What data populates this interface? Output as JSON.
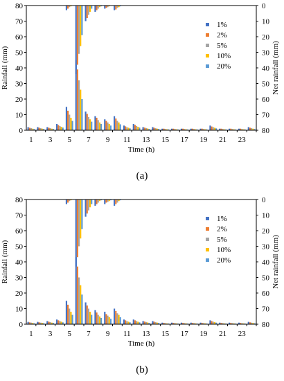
{
  "chart_data": [
    {
      "panel_label": "(a)",
      "type": "bar",
      "xlabel": "Time (h)",
      "ylabel": "Rainfall (mm)",
      "ylabel_right": "Net rainfall (mm)",
      "ylim": [
        0,
        80
      ],
      "ylim_right": [
        0,
        80
      ],
      "right_axis_inverted": true,
      "yticks": [
        0,
        10,
        20,
        30,
        40,
        50,
        60,
        70,
        80
      ],
      "yticks_right": [
        0,
        10,
        20,
        30,
        40,
        50,
        60,
        70,
        80
      ],
      "xticks": [
        1,
        3,
        5,
        7,
        9,
        11,
        13,
        15,
        17,
        19,
        21,
        23
      ],
      "hours": [
        1,
        2,
        3,
        4,
        5,
        6,
        7,
        8,
        9,
        10,
        11,
        12,
        13,
        14,
        15,
        16,
        17,
        18,
        19,
        20,
        21,
        22,
        23,
        24
      ],
      "legend_position": "right",
      "series": [
        {
          "name": "1%",
          "color": "#4472C4",
          "rainfall": [
            2,
            2,
            2,
            4,
            15,
            45,
            12,
            9,
            7,
            9,
            3,
            4,
            2,
            2,
            1,
            1,
            1,
            1,
            1,
            3,
            1,
            1,
            1,
            2
          ],
          "net_rainfall": [
            0,
            0,
            0,
            0,
            3,
            44,
            10,
            4,
            2,
            3,
            0,
            0,
            0,
            0,
            0,
            0,
            0,
            0,
            0,
            0,
            0,
            0,
            0,
            0
          ]
        },
        {
          "name": "2%",
          "color": "#ED7D31",
          "rainfall": [
            1.6,
            1.6,
            1.6,
            3.3,
            12.5,
            39,
            10.5,
            8,
            6,
            7.5,
            2.5,
            3.4,
            1.7,
            1.6,
            1,
            1,
            1,
            1,
            1,
            2.4,
            1,
            1,
            1,
            1.6
          ],
          "net_rainfall": [
            0,
            0,
            0,
            0,
            2,
            38,
            8,
            3,
            1.5,
            2.5,
            0,
            0,
            0,
            0,
            0,
            0,
            0,
            0,
            0,
            0,
            0,
            0,
            0,
            0
          ]
        },
        {
          "name": "5%",
          "color": "#A5A5A5",
          "rainfall": [
            1.3,
            1.3,
            1.3,
            2.7,
            10,
            32,
            8.5,
            6.5,
            5,
            6,
            2,
            2.7,
            1.4,
            1.3,
            0.8,
            0.8,
            0.8,
            0.8,
            0.8,
            2,
            0.8,
            0.8,
            0.8,
            1.3
          ],
          "net_rainfall": [
            0,
            0,
            0,
            0,
            1,
            31,
            6,
            2,
            1,
            1.5,
            0,
            0,
            0,
            0,
            0,
            0,
            0,
            0,
            0,
            0,
            0,
            0,
            0,
            0
          ]
        },
        {
          "name": "10%",
          "color": "#FFC000",
          "rainfall": [
            1,
            1,
            1,
            2.2,
            8,
            26,
            7,
            5,
            4,
            5,
            1.6,
            2.2,
            1.1,
            1,
            0.6,
            0.6,
            0.6,
            0.6,
            0.6,
            1.6,
            0.6,
            0.6,
            0.6,
            1
          ],
          "net_rainfall": [
            0,
            0,
            0,
            0,
            0.5,
            26,
            4,
            1,
            0.5,
            1,
            0,
            0,
            0,
            0,
            0,
            0,
            0,
            0,
            0,
            0,
            0,
            0,
            0,
            0
          ]
        },
        {
          "name": "20%",
          "color": "#5B9BD5",
          "rainfall": [
            0.8,
            0.8,
            0.8,
            1.7,
            6,
            20,
            5.5,
            4,
            3,
            3.8,
            1.2,
            1.7,
            0.8,
            0.8,
            0.5,
            0.5,
            0.5,
            0.5,
            0.5,
            1.2,
            0.5,
            0.5,
            0.5,
            0.8
          ],
          "net_rainfall": [
            0,
            0,
            0,
            0,
            0,
            19,
            2,
            0.5,
            0,
            0.5,
            0,
            0,
            0,
            0,
            0,
            0,
            0,
            0,
            0,
            0,
            0,
            0,
            0,
            0
          ]
        }
      ]
    },
    {
      "panel_label": "(b)",
      "type": "bar",
      "xlabel": "Time (h)",
      "ylabel": "Rainfall (mm)",
      "ylabel_right": "Net rainfall (mm)",
      "ylim": [
        0,
        80
      ],
      "ylim_right": [
        0,
        80
      ],
      "right_axis_inverted": true,
      "yticks": [
        0,
        10,
        20,
        30,
        40,
        50,
        60,
        70,
        80
      ],
      "yticks_right": [
        0,
        10,
        20,
        30,
        40,
        50,
        60,
        70,
        80
      ],
      "xticks": [
        1,
        3,
        5,
        7,
        9,
        11,
        13,
        15,
        17,
        19,
        21,
        23
      ],
      "hours": [
        1,
        2,
        3,
        4,
        5,
        6,
        7,
        8,
        9,
        10,
        11,
        12,
        13,
        14,
        15,
        16,
        17,
        18,
        19,
        20,
        21,
        22,
        23,
        24
      ],
      "legend_position": "right",
      "series": [
        {
          "name": "1%",
          "color": "#4472C4",
          "rainfall": [
            1.5,
            1.5,
            2,
            3,
            15,
            43,
            14,
            9,
            8,
            10,
            3,
            3,
            2,
            2,
            1,
            1,
            1,
            1,
            1,
            2.5,
            1,
            1,
            1,
            1.5
          ],
          "net_rainfall": [
            0,
            0,
            0,
            0,
            3,
            43,
            11,
            4,
            3,
            4,
            0,
            0,
            0,
            0,
            0,
            0,
            0,
            0,
            0,
            0,
            0,
            0,
            0,
            0
          ]
        },
        {
          "name": "2%",
          "color": "#ED7D31",
          "rainfall": [
            1.2,
            1.2,
            1.6,
            2.5,
            12.5,
            37,
            12,
            7.5,
            6.5,
            8.5,
            2.5,
            2.5,
            1.7,
            1.6,
            0.8,
            0.8,
            0.8,
            0.8,
            0.8,
            2,
            0.8,
            0.8,
            0.8,
            1.2
          ],
          "net_rainfall": [
            0,
            0,
            0,
            0,
            2,
            37,
            9,
            3,
            2,
            3,
            0,
            0,
            0,
            0,
            0,
            0,
            0,
            0,
            0,
            0,
            0,
            0,
            0,
            0
          ]
        },
        {
          "name": "5%",
          "color": "#A5A5A5",
          "rainfall": [
            1,
            1,
            1.3,
            2,
            10,
            30,
            10,
            6,
            5.5,
            7,
            2,
            2,
            1.4,
            1.3,
            0.7,
            0.7,
            0.7,
            0.7,
            0.7,
            1.6,
            0.7,
            0.7,
            0.7,
            1
          ],
          "net_rainfall": [
            0,
            0,
            0,
            0,
            1,
            30,
            7,
            2,
            1.5,
            2,
            0,
            0,
            0,
            0,
            0,
            0,
            0,
            0,
            0,
            0,
            0,
            0,
            0,
            0
          ]
        },
        {
          "name": "10%",
          "color": "#FFC000",
          "rainfall": [
            0.8,
            0.8,
            1,
            1.6,
            8,
            25,
            8,
            5,
            4.5,
            6,
            1.6,
            1.6,
            1.1,
            1,
            0.5,
            0.5,
            0.5,
            0.5,
            0.5,
            1.3,
            0.5,
            0.5,
            0.5,
            0.8
          ],
          "net_rainfall": [
            0,
            0,
            0,
            0,
            0.5,
            25,
            5,
            1,
            1,
            1,
            0,
            0,
            0,
            0,
            0,
            0,
            0,
            0,
            0,
            0,
            0,
            0,
            0,
            0
          ]
        },
        {
          "name": "20%",
          "color": "#5B9BD5",
          "rainfall": [
            0.6,
            0.6,
            0.8,
            1.2,
            6,
            19,
            6,
            4,
            3.5,
            4.5,
            1.2,
            1.2,
            0.8,
            0.8,
            0.4,
            0.4,
            0.4,
            0.4,
            0.4,
            1,
            0.4,
            0.4,
            0.4,
            0.6
          ],
          "net_rainfall": [
            0,
            0,
            0,
            0,
            0,
            19,
            3,
            0.5,
            0.5,
            0.5,
            0,
            0,
            0,
            0,
            0,
            0,
            0,
            0,
            0,
            0,
            0,
            0,
            0,
            0
          ]
        }
      ]
    }
  ]
}
